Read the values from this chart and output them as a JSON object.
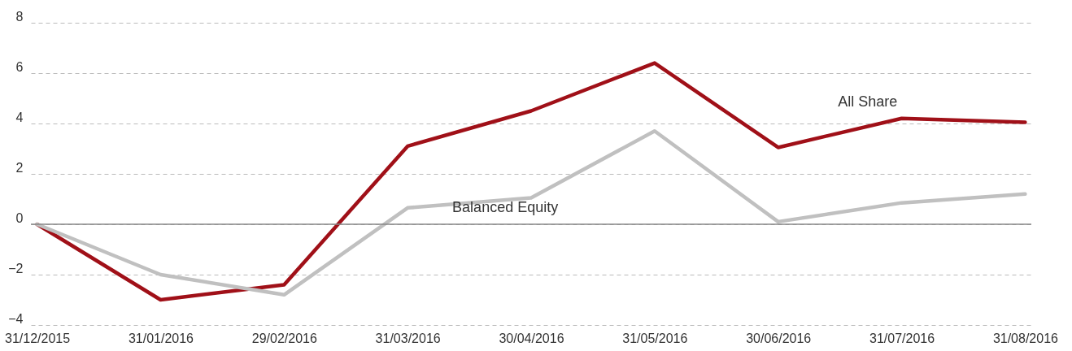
{
  "chart_data": {
    "type": "line",
    "categories": [
      "31/12/2015",
      "31/01/2016",
      "29/02/2016",
      "31/03/2016",
      "30/04/2016",
      "31/05/2016",
      "30/06/2016",
      "31/07/2016",
      "31/08/2016"
    ],
    "series": [
      {
        "name": "All Share",
        "color": "#a01018",
        "values": [
          0,
          -3.0,
          -2.4,
          3.1,
          4.5,
          6.4,
          3.05,
          4.2,
          4.05
        ]
      },
      {
        "name": "Balanced Equity",
        "color": "#c0c0c0",
        "values": [
          0,
          -2.0,
          -2.8,
          0.65,
          1.05,
          3.7,
          0.1,
          0.85,
          1.2
        ]
      }
    ],
    "ylim": [
      -4,
      8
    ],
    "yticks": [
      -4,
      -2,
      0,
      2,
      4,
      6,
      8
    ],
    "grid": "y",
    "legend": false,
    "ref_lines": [
      {
        "axis": "y",
        "value": 0,
        "color": "#888888"
      }
    ]
  }
}
